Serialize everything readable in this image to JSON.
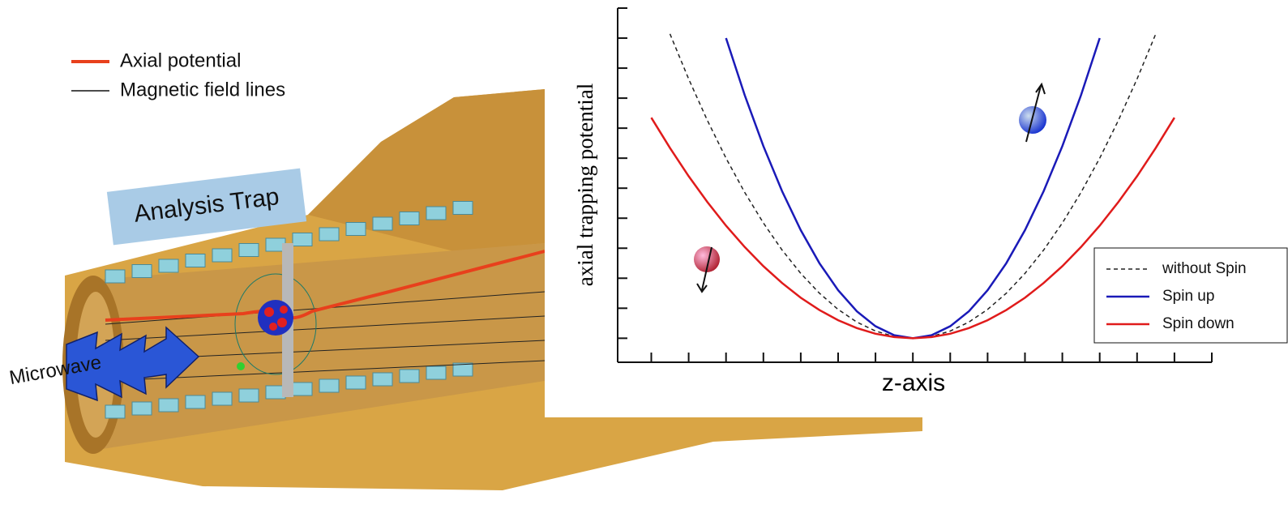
{
  "figure": {
    "legend": [
      "Axial potential",
      "Magnetic field lines"
    ],
    "trap_label": "Analysis Trap",
    "microwave_label": "Microwave"
  },
  "chart_data": {
    "type": "line",
    "xlabel": "z-axis",
    "ylabel": "axial trapping potential",
    "x": [
      -7,
      -6.5,
      -6,
      -5.5,
      -5,
      -4.5,
      -4,
      -3.5,
      -3,
      -2.5,
      -2,
      -1.5,
      -1,
      -0.5,
      0,
      0.5,
      1,
      1.5,
      2,
      2.5,
      3,
      3.5,
      4,
      4.5,
      5,
      5.5,
      6,
      6.5,
      7
    ],
    "series": [
      {
        "name": "without Spin",
        "color": "#222222",
        "dash": true,
        "values": [
          null,
          10.14,
          8.64,
          7.26,
          6,
          4.86,
          3.84,
          2.94,
          2.16,
          1.5,
          0.96,
          0.54,
          0.24,
          0.06,
          0,
          0.06,
          0.24,
          0.54,
          0.96,
          1.5,
          2.16,
          2.94,
          3.84,
          4.86,
          6,
          7.26,
          8.64,
          10.14,
          null
        ]
      },
      {
        "name": "Spin up",
        "color": "#1a1ab8",
        "dash": false,
        "values": [
          null,
          null,
          null,
          null,
          10,
          8.1,
          6.4,
          4.9,
          3.6,
          2.5,
          1.6,
          0.9,
          0.4,
          0.1,
          0,
          0.1,
          0.4,
          0.9,
          1.6,
          2.5,
          3.6,
          4.9,
          6.4,
          8.1,
          10,
          null,
          null,
          null,
          null
        ]
      },
      {
        "name": "Spin down",
        "color": "#e01b1b",
        "dash": false,
        "values": [
          7.35,
          6.34,
          5.4,
          4.54,
          3.75,
          3.04,
          2.4,
          1.84,
          1.35,
          0.94,
          0.6,
          0.34,
          0.15,
          0.04,
          0,
          0.04,
          0.15,
          0.34,
          0.6,
          0.94,
          1.35,
          1.84,
          2.4,
          3.04,
          3.75,
          4.54,
          5.4,
          6.34,
          7.35
        ]
      }
    ],
    "xlim": [
      -7.9,
      8
    ],
    "xticks": [
      -7,
      -6,
      -5,
      -4,
      -3,
      -2,
      -1,
      0,
      1,
      2,
      3,
      4,
      5,
      6,
      7,
      8
    ],
    "ylim": [
      -0.8,
      11
    ],
    "yticks": [
      0,
      1,
      2,
      3,
      4,
      5,
      6,
      7,
      8,
      9,
      10,
      11
    ],
    "legend": "lower right",
    "grid": false
  }
}
